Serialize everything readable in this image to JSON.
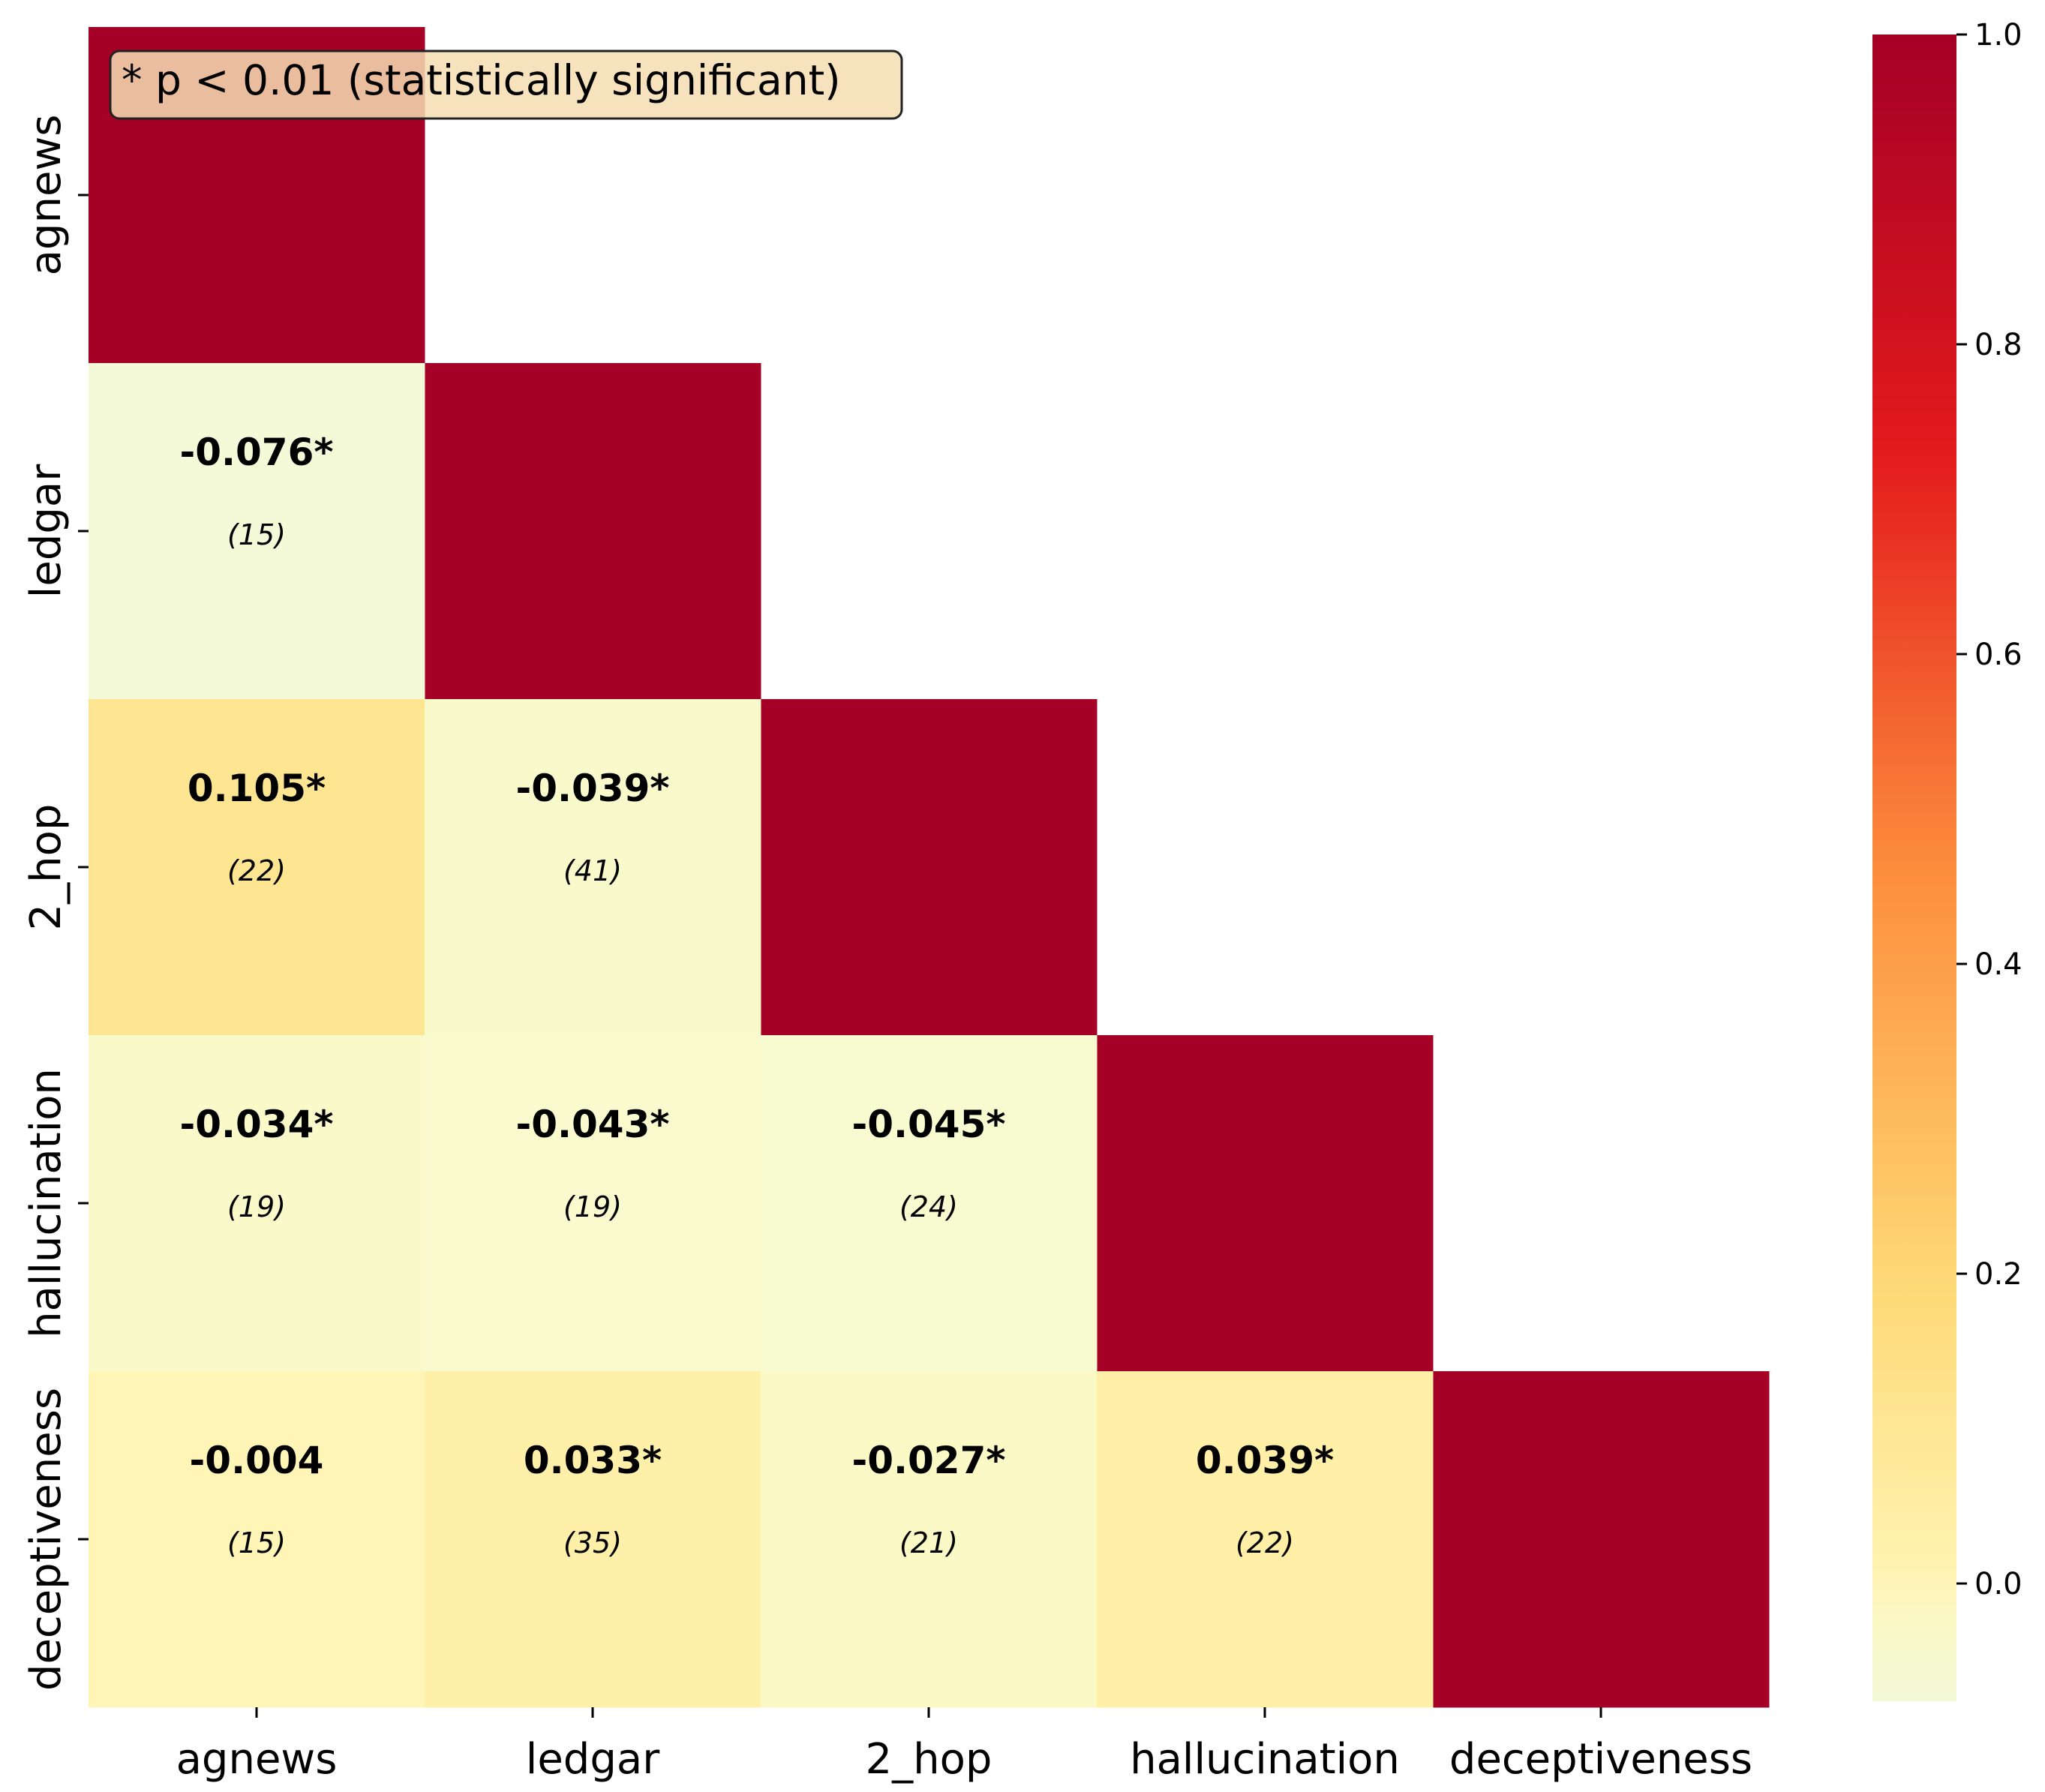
{
  "chart_data": {
    "type": "heatmap",
    "variables": [
      "agnews",
      "ledgar",
      "2_hop",
      "hallucination",
      "deceptiveness"
    ],
    "layout": "lower-triangle",
    "colormap": [
      "#ffffcc",
      "#fed976",
      "#fd8d3c",
      "#e31a1c",
      "#a50026"
    ],
    "diagonal_value": 1.0,
    "cells": [
      {
        "row": 1,
        "col": 0,
        "value": -0.076,
        "label": "-0.076*",
        "count": "(15)"
      },
      {
        "row": 2,
        "col": 0,
        "value": 0.105,
        "label": "0.105*",
        "count": "(22)"
      },
      {
        "row": 2,
        "col": 1,
        "value": -0.039,
        "label": "-0.039*",
        "count": "(41)"
      },
      {
        "row": 3,
        "col": 0,
        "value": -0.034,
        "label": "-0.034*",
        "count": "(19)"
      },
      {
        "row": 3,
        "col": 1,
        "value": -0.043,
        "label": "-0.043*",
        "count": "(19)"
      },
      {
        "row": 3,
        "col": 2,
        "value": -0.045,
        "label": "-0.045*",
        "count": "(24)"
      },
      {
        "row": 4,
        "col": 0,
        "value": -0.004,
        "label": "-0.004",
        "count": "(15)"
      },
      {
        "row": 4,
        "col": 1,
        "value": 0.033,
        "label": "0.033*",
        "count": "(35)"
      },
      {
        "row": 4,
        "col": 2,
        "value": -0.027,
        "label": "-0.027*",
        "count": "(21)"
      },
      {
        "row": 4,
        "col": 3,
        "value": 0.039,
        "label": "0.039*",
        "count": "(22)"
      }
    ],
    "colorbar": {
      "vmin": -0.076,
      "vmax": 1.0,
      "ticks": [
        0.0,
        0.2,
        0.4,
        0.6,
        0.8,
        1.0
      ],
      "tick_labels": [
        "0.0",
        "0.2",
        "0.4",
        "0.6",
        "0.8",
        "1.0"
      ]
    },
    "annotation": "* p < 0.01 (statistically significant)"
  }
}
